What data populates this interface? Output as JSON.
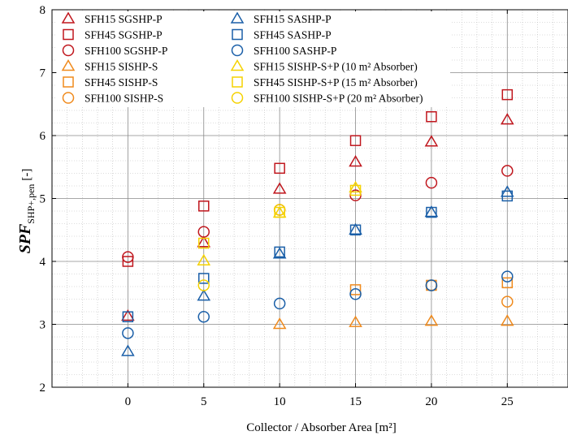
{
  "chart_data": {
    "type": "scatter",
    "xlabel": "Collector / Absorber Area [m²]",
    "ylabel_main": "SPF",
    "ylabel_sub": "SHP+,pen",
    "ylabel_unit": "[-]",
    "xlim": [
      -5,
      29
    ],
    "ylim": [
      2,
      8
    ],
    "xticks": [
      0,
      5,
      10,
      15,
      20,
      25
    ],
    "yticks": [
      2,
      3,
      4,
      5,
      6,
      7,
      8
    ],
    "xtick_labels": [
      "0",
      "5",
      "10",
      "15",
      "20",
      "25"
    ],
    "ytick_labels": [
      "2",
      "3",
      "4",
      "5",
      "6",
      "7",
      "8"
    ],
    "grid": true,
    "legend_position": "top-left",
    "series": [
      {
        "name": "SFH15 SGSHP-P",
        "marker": "triangle",
        "color": "#c0161d",
        "x": [
          0,
          5,
          10,
          15,
          20,
          25
        ],
        "y": [
          3.13,
          4.3,
          5.15,
          5.58,
          5.9,
          6.25
        ]
      },
      {
        "name": "SFH45 SGSHP-P",
        "marker": "square",
        "color": "#c0161d",
        "x": [
          0,
          5,
          10,
          15,
          20,
          25
        ],
        "y": [
          4.0,
          4.88,
          5.48,
          5.92,
          6.3,
          6.65
        ]
      },
      {
        "name": "SFH100 SGSHP-P",
        "marker": "circle",
        "color": "#c0161d",
        "x": [
          0,
          5,
          10,
          15,
          20,
          25
        ],
        "y": [
          4.07,
          4.47,
          4.82,
          5.05,
          5.25,
          5.44
        ]
      },
      {
        "name": "SFH15 SISHP-S",
        "marker": "triangle",
        "color": "#f08a1c",
        "x": [
          10,
          15,
          20,
          25
        ],
        "y": [
          3.0,
          3.03,
          3.05,
          3.05
        ]
      },
      {
        "name": "SFH45 SISHP-S",
        "marker": "square",
        "color": "#f08a1c",
        "x": [
          15,
          20,
          25
        ],
        "y": [
          3.55,
          3.62,
          3.66
        ]
      },
      {
        "name": "SFH100 SISHP-S",
        "marker": "circle",
        "color": "#f08a1c",
        "x": [
          20,
          25
        ],
        "y": [
          3.62,
          3.36
        ]
      },
      {
        "name": "SFH15 SASHP-P",
        "marker": "triangle",
        "color": "#1a5fa8",
        "x": [
          0,
          5,
          10,
          15,
          20,
          25
        ],
        "y": [
          2.57,
          3.45,
          4.12,
          4.5,
          4.78,
          5.1
        ]
      },
      {
        "name": "SFH45 SASHP-P",
        "marker": "square",
        "color": "#1a5fa8",
        "x": [
          0,
          5,
          10,
          15,
          20,
          25
        ],
        "y": [
          3.12,
          3.73,
          4.15,
          4.5,
          4.78,
          5.04
        ]
      },
      {
        "name": "SFH100 SASHP-P",
        "marker": "circle",
        "color": "#1a5fa8",
        "x": [
          0,
          5,
          10,
          15,
          20,
          25
        ],
        "y": [
          2.86,
          3.12,
          3.33,
          3.48,
          3.62,
          3.76
        ]
      },
      {
        "name": "SFH15 SISHP-S+P (10 m² Absorber)",
        "marker": "triangle",
        "color": "#f5d200",
        "x": [
          5,
          10,
          15
        ],
        "y": [
          4.01,
          4.77,
          5.17
        ]
      },
      {
        "name": "SFH45 SISHP-S+P (15 m² Absorber)",
        "marker": "square",
        "color": "#f5d200",
        "x": [
          5,
          10,
          15
        ],
        "y": [
          4.29,
          4.78,
          5.13
        ]
      },
      {
        "name": "SFH100 SISHP-S+P (20 m² Absorber)",
        "marker": "circle",
        "color": "#f5d200",
        "x": [
          5,
          10
        ],
        "y": [
          3.62,
          4.82
        ]
      }
    ],
    "legend_columns": [
      [
        "SFH15 SGSHP-P",
        "SFH45 SGSHP-P",
        "SFH100 SGSHP-P",
        "SFH15 SISHP-S",
        "SFH45 SISHP-S",
        "SFH100 SISHP-S"
      ],
      [
        "SFH15 SASHP-P",
        "SFH45 SASHP-P",
        "SFH100 SASHP-P",
        "SFH15 SISHP-S+P (10 m² Absorber)",
        "SFH45 SISHP-S+P (15 m² Absorber)",
        "SFH100 SISHP-S+P (20 m² Absorber)"
      ]
    ]
  }
}
